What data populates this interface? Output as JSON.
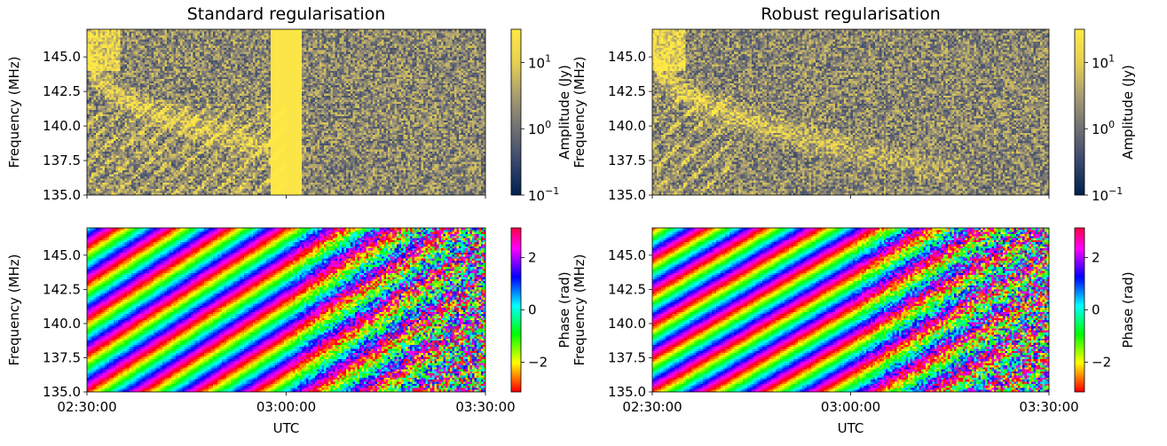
{
  "chart_data": [
    {
      "type": "heatmap",
      "title": "Standard regularisation",
      "quantity": "amplitude",
      "xlabel": "",
      "ylabel": "Frequency (MHz)",
      "x_range": [
        "02:30:00",
        "03:30:00"
      ],
      "ylim": [
        135.0,
        147.0
      ],
      "yticks": [
        "135.0",
        "137.5",
        "140.0",
        "142.5",
        "145.0"
      ],
      "colorbar": {
        "label": "Amplitude (Jy)",
        "scale": "log",
        "range": [
          0.1,
          31.6
        ],
        "ticks": [
          {
            "base": "10",
            "exp": "−1"
          },
          {
            "base": "10",
            "exp": "0"
          },
          {
            "base": "10",
            "exp": "1"
          }
        ],
        "colormap": "cividis"
      },
      "features": "bright arc from 145 MHz at 02:30 down to ~137 MHz by 03:00; saturated block at 02:51–02:56"
    },
    {
      "type": "heatmap",
      "title": "Robust regularisation",
      "quantity": "amplitude",
      "xlabel": "",
      "ylabel": "Frequency (MHz)",
      "x_range": [
        "02:30:00",
        "03:30:00"
      ],
      "ylim": [
        135.0,
        147.0
      ],
      "yticks": [
        "135.0",
        "137.5",
        "140.0",
        "142.5",
        "145.0"
      ],
      "colorbar": {
        "label": "Amplitude (Jy)",
        "scale": "log",
        "range": [
          0.1,
          31.6
        ],
        "ticks": [
          {
            "base": "10",
            "exp": "−1"
          },
          {
            "base": "10",
            "exp": "0"
          },
          {
            "base": "10",
            "exp": "1"
          }
        ],
        "colormap": "cividis"
      },
      "features": "smooth bright arc from 145 MHz at 02:30 sweeping down to ~138 MHz near 03:10"
    },
    {
      "type": "heatmap",
      "title": "",
      "quantity": "phase",
      "xlabel": "UTC",
      "ylabel": "Frequency (MHz)",
      "xticks": [
        "02:30:00",
        "03:00:00",
        "03:30:00"
      ],
      "ylim": [
        135.0,
        147.0
      ],
      "yticks": [
        "135.0",
        "137.5",
        "140.0",
        "142.5",
        "145.0"
      ],
      "colorbar": {
        "label": "Phase (rad)",
        "range": [
          -3.14,
          3.14
        ],
        "ticks": [
          "−2",
          "0",
          "2"
        ],
        "colormap": "hsv"
      },
      "features": "diagonal phase-wrap stripes, noisy after 03:00"
    },
    {
      "type": "heatmap",
      "title": "",
      "quantity": "phase",
      "xlabel": "UTC",
      "ylabel": "Frequency (MHz)",
      "xticks": [
        "02:30:00",
        "03:00:00",
        "03:30:00"
      ],
      "ylim": [
        135.0,
        147.0
      ],
      "yticks": [
        "135.0",
        "137.5",
        "140.0",
        "142.5",
        "145.0"
      ],
      "colorbar": {
        "label": "Phase (rad)",
        "range": [
          -3.14,
          3.14
        ],
        "ticks": [
          "−2",
          "0",
          "2"
        ],
        "colormap": "hsv"
      },
      "features": "diagonal phase-wrap stripes, noisy after 03:00"
    }
  ]
}
